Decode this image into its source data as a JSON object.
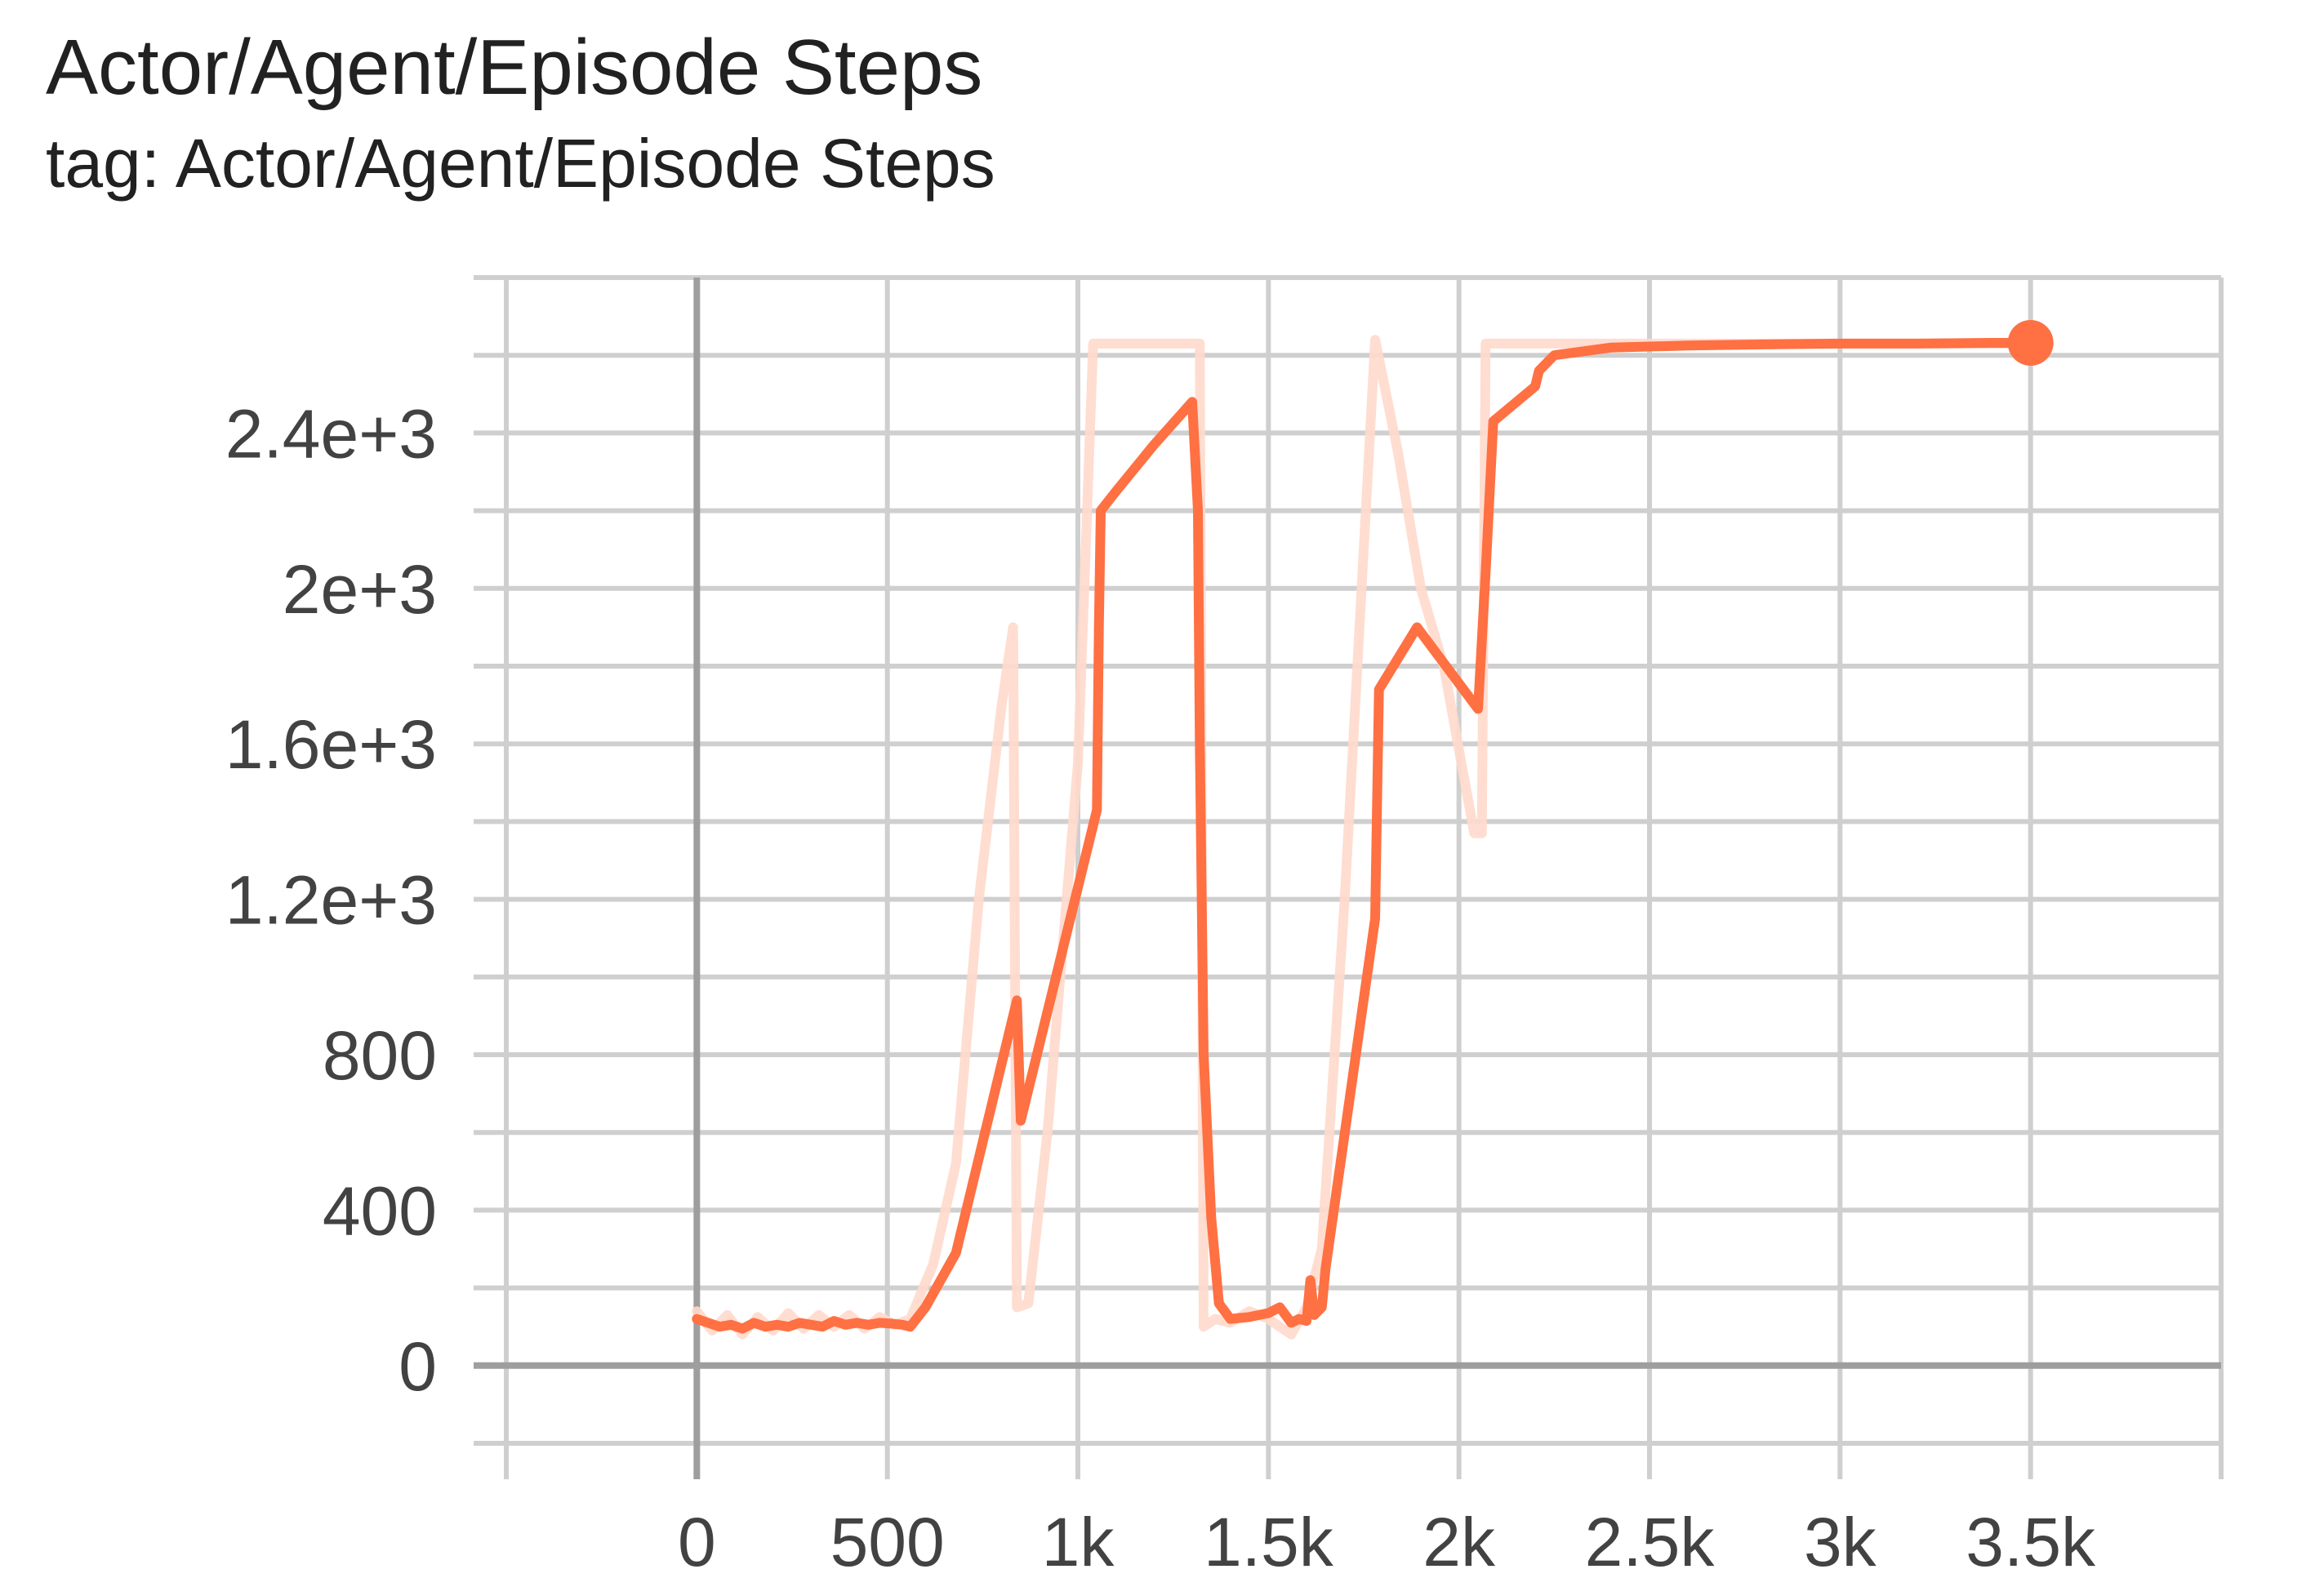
{
  "header": {
    "title": "Actor/Agent/Episode Steps",
    "subtitle": "tag: Actor/Agent/Episode Steps"
  },
  "colors": {
    "series": "#ff7043",
    "raw": "#ffd9cc",
    "grid": "#cfcfcf",
    "axis": "#9e9e9e",
    "text": "#212121"
  },
  "chart_data": {
    "type": "line",
    "title": "Actor/Agent/Episode Steps",
    "subtitle": "tag: Actor/Agent/Episode Steps",
    "xlabel": "",
    "ylabel": "",
    "xlim": [
      -500,
      4000
    ],
    "ylim": [
      -200,
      2800
    ],
    "x_ticks": [
      0,
      500,
      1000,
      1500,
      2000,
      2500,
      3000,
      3500
    ],
    "x_tick_labels": [
      "0",
      "500",
      "1k",
      "1.5k",
      "2k",
      "2.5k",
      "3k",
      "3.5k"
    ],
    "y_ticks": [
      0,
      400,
      800,
      1200,
      1600,
      2000,
      2400
    ],
    "y_tick_labels": [
      "0",
      "400",
      "800",
      "1.2e+3",
      "1.6e+3",
      "2e+3",
      "2.4e+3"
    ],
    "grid": true,
    "series": [
      {
        "role": "raw",
        "x": [
          0,
          40,
          80,
          120,
          160,
          200,
          240,
          280,
          320,
          360,
          400,
          440,
          480,
          520,
          560,
          620,
          680,
          740,
          800,
          830,
          840,
          870,
          920,
          1000,
          1040,
          1060,
          1100,
          1200,
          1300,
          1320,
          1330,
          1360,
          1400,
          1450,
          1500,
          1560,
          1600,
          1640,
          1700,
          1780,
          1840,
          1900,
          1960,
          2040,
          2060,
          2070,
          2100,
          2200,
          2300,
          2400,
          2600,
          2800,
          3000,
          3200,
          3400,
          3500
        ],
        "y": [
          140,
          90,
          130,
          80,
          125,
          90,
          135,
          95,
          130,
          100,
          130,
          95,
          125,
          105,
          120,
          260,
          520,
          1200,
          1700,
          1900,
          150,
          160,
          600,
          1550,
          2630,
          2630,
          2630,
          2630,
          2630,
          2630,
          100,
          120,
          110,
          140,
          120,
          80,
          150,
          300,
          1200,
          2640,
          2350,
          2000,
          1800,
          1370,
          1370,
          2630,
          2630,
          2630,
          2630,
          2630,
          2630,
          2630,
          2630,
          2630,
          2630,
          2630
        ]
      },
      {
        "role": "smoothed",
        "x": [
          0,
          30,
          60,
          90,
          120,
          150,
          180,
          210,
          240,
          270,
          300,
          330,
          360,
          390,
          420,
          450,
          480,
          510,
          540,
          560,
          600,
          680,
          840,
          850,
          1050,
          1055,
          1060,
          1100,
          1200,
          1300,
          1315,
          1320,
          1330,
          1350,
          1370,
          1400,
          1450,
          1500,
          1530,
          1560,
          1580,
          1600,
          1610,
          1620,
          1640,
          1650,
          1780,
          1790,
          1890,
          2050,
          2070,
          2090,
          2200,
          2210,
          2250,
          2400,
          2600,
          2800,
          3000,
          3200,
          3400,
          3500
        ],
        "y": [
          120,
          110,
          100,
          105,
          95,
          110,
          100,
          105,
          100,
          110,
          105,
          100,
          115,
          105,
          110,
          105,
          110,
          108,
          105,
          100,
          150,
          290,
          940,
          630,
          1430,
          1900,
          2200,
          2250,
          2370,
          2480,
          2200,
          1600,
          800,
          380,
          160,
          120,
          125,
          135,
          150,
          110,
          120,
          115,
          220,
          130,
          150,
          250,
          1150,
          1740,
          1900,
          1690,
          2040,
          2430,
          2520,
          2560,
          2600,
          2620,
          2625,
          2628,
          2630,
          2630,
          2632,
          2632
        ]
      }
    ]
  }
}
